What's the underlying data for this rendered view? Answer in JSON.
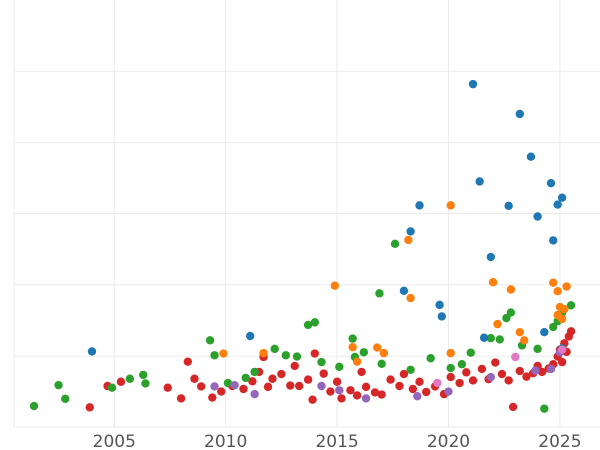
{
  "chart_data": {
    "type": "scatter",
    "title": "",
    "xlabel": "",
    "ylabel": "",
    "xlim": [
      2000.5,
      2026.8
    ],
    "ylim": [
      0,
      1
    ],
    "x_ticks": [
      2005,
      2010,
      2015,
      2020,
      2025
    ],
    "y_ticks": [
      0,
      0.166,
      0.333,
      0.5,
      0.666,
      0.833
    ],
    "y_tick_labels_visible": false,
    "grid": true,
    "legend": "none",
    "series": [
      {
        "color": "#d62728",
        "points": [
          [
            2003.9,
            0.046
          ],
          [
            2004.7,
            0.096
          ],
          [
            2005.3,
            0.106
          ],
          [
            2007.4,
            0.092
          ],
          [
            2008.0,
            0.067
          ],
          [
            2008.3,
            0.153
          ],
          [
            2008.6,
            0.113
          ],
          [
            2008.9,
            0.095
          ],
          [
            2009.4,
            0.069
          ],
          [
            2009.8,
            0.083
          ],
          [
            2010.3,
            0.096
          ],
          [
            2010.8,
            0.089
          ],
          [
            2011.2,
            0.107
          ],
          [
            2011.5,
            0.129
          ],
          [
            2011.7,
            0.164
          ],
          [
            2011.9,
            0.094
          ],
          [
            2012.1,
            0.113
          ],
          [
            2012.5,
            0.124
          ],
          [
            2012.9,
            0.097
          ],
          [
            2013.1,
            0.143
          ],
          [
            2013.3,
            0.096
          ],
          [
            2013.7,
            0.111
          ],
          [
            2013.9,
            0.064
          ],
          [
            2014.0,
            0.172
          ],
          [
            2014.4,
            0.125
          ],
          [
            2014.7,
            0.083
          ],
          [
            2015.0,
            0.106
          ],
          [
            2015.2,
            0.067
          ],
          [
            2015.6,
            0.086
          ],
          [
            2015.9,
            0.074
          ],
          [
            2016.1,
            0.129
          ],
          [
            2016.3,
            0.094
          ],
          [
            2016.7,
            0.081
          ],
          [
            2017.0,
            0.076
          ],
          [
            2017.4,
            0.111
          ],
          [
            2017.8,
            0.096
          ],
          [
            2018.0,
            0.124
          ],
          [
            2018.4,
            0.089
          ],
          [
            2018.7,
            0.106
          ],
          [
            2019.0,
            0.082
          ],
          [
            2019.4,
            0.095
          ],
          [
            2019.8,
            0.077
          ],
          [
            2020.1,
            0.117
          ],
          [
            2020.5,
            0.103
          ],
          [
            2020.8,
            0.128
          ],
          [
            2021.1,
            0.109
          ],
          [
            2021.5,
            0.136
          ],
          [
            2021.8,
            0.112
          ],
          [
            2022.1,
            0.151
          ],
          [
            2022.4,
            0.124
          ],
          [
            2022.7,
            0.109
          ],
          [
            2022.9,
            0.047
          ],
          [
            2023.2,
            0.131
          ],
          [
            2023.5,
            0.118
          ],
          [
            2023.8,
            0.126
          ],
          [
            2024.0,
            0.143
          ],
          [
            2024.2,
            0.129
          ],
          [
            2024.5,
            0.137
          ],
          [
            2024.7,
            0.147
          ],
          [
            2024.9,
            0.165
          ],
          [
            2025.0,
            0.181
          ],
          [
            2025.1,
            0.152
          ],
          [
            2025.2,
            0.196
          ],
          [
            2025.3,
            0.176
          ],
          [
            2025.4,
            0.212
          ],
          [
            2025.5,
            0.224
          ]
        ]
      },
      {
        "color": "#2ca02c",
        "points": [
          [
            2001.4,
            0.049
          ],
          [
            2002.5,
            0.098
          ],
          [
            2002.8,
            0.066
          ],
          [
            2004.9,
            0.092
          ],
          [
            2005.7,
            0.113
          ],
          [
            2006.3,
            0.122
          ],
          [
            2006.4,
            0.102
          ],
          [
            2009.3,
            0.203
          ],
          [
            2009.5,
            0.168
          ],
          [
            2010.1,
            0.103
          ],
          [
            2010.9,
            0.115
          ],
          [
            2011.3,
            0.129
          ],
          [
            2012.2,
            0.183
          ],
          [
            2012.7,
            0.168
          ],
          [
            2013.2,
            0.165
          ],
          [
            2013.7,
            0.239
          ],
          [
            2014.0,
            0.245
          ],
          [
            2014.3,
            0.152
          ],
          [
            2015.1,
            0.141
          ],
          [
            2015.7,
            0.207
          ],
          [
            2015.8,
            0.164
          ],
          [
            2016.2,
            0.175
          ],
          [
            2017.0,
            0.148
          ],
          [
            2016.9,
            0.313
          ],
          [
            2017.6,
            0.429
          ],
          [
            2018.3,
            0.134
          ],
          [
            2019.2,
            0.161
          ],
          [
            2020.1,
            0.138
          ],
          [
            2020.6,
            0.147
          ],
          [
            2021.0,
            0.174
          ],
          [
            2021.9,
            0.208
          ],
          [
            2022.3,
            0.205
          ],
          [
            2022.6,
            0.255
          ],
          [
            2022.8,
            0.268
          ],
          [
            2023.3,
            0.191
          ],
          [
            2024.0,
            0.183
          ],
          [
            2024.3,
            0.043
          ],
          [
            2024.7,
            0.234
          ],
          [
            2024.9,
            0.248
          ],
          [
            2025.1,
            0.267
          ],
          [
            2025.5,
            0.285
          ]
        ]
      },
      {
        "color": "#1f77b4",
        "points": [
          [
            2004.0,
            0.177
          ],
          [
            2011.1,
            0.213
          ],
          [
            2018.0,
            0.319
          ],
          [
            2019.7,
            0.259
          ],
          [
            2018.3,
            0.458
          ],
          [
            2018.7,
            0.519
          ],
          [
            2019.6,
            0.286
          ],
          [
            2021.1,
            0.803
          ],
          [
            2021.4,
            0.575
          ],
          [
            2021.6,
            0.209
          ],
          [
            2021.9,
            0.398
          ],
          [
            2022.7,
            0.518
          ],
          [
            2023.2,
            0.733
          ],
          [
            2023.7,
            0.633
          ],
          [
            2024.0,
            0.493
          ],
          [
            2024.3,
            0.222
          ],
          [
            2024.6,
            0.571
          ],
          [
            2024.7,
            0.437
          ],
          [
            2024.9,
            0.521
          ],
          [
            2025.1,
            0.537
          ],
          [
            2025.1,
            0.184
          ]
        ]
      },
      {
        "color": "#ff7f0e",
        "points": [
          [
            2009.9,
            0.172
          ],
          [
            2011.7,
            0.173
          ],
          [
            2014.9,
            0.331
          ],
          [
            2015.7,
            0.187
          ],
          [
            2015.9,
            0.153
          ],
          [
            2016.8,
            0.186
          ],
          [
            2017.1,
            0.173
          ],
          [
            2018.2,
            0.438
          ],
          [
            2018.3,
            0.302
          ],
          [
            2020.1,
            0.519
          ],
          [
            2020.1,
            0.173
          ],
          [
            2022.0,
            0.339
          ],
          [
            2022.2,
            0.241
          ],
          [
            2022.8,
            0.322
          ],
          [
            2023.2,
            0.222
          ],
          [
            2023.4,
            0.203
          ],
          [
            2024.7,
            0.338
          ],
          [
            2024.9,
            0.318
          ],
          [
            2025.0,
            0.281
          ],
          [
            2025.1,
            0.253
          ],
          [
            2025.2,
            0.276
          ],
          [
            2025.3,
            0.329
          ],
          [
            2024.9,
            0.262
          ]
        ]
      },
      {
        "color": "#9467bd",
        "points": [
          [
            2009.5,
            0.095
          ],
          [
            2010.4,
            0.098
          ],
          [
            2011.3,
            0.077
          ],
          [
            2014.3,
            0.096
          ],
          [
            2015.1,
            0.086
          ],
          [
            2016.3,
            0.067
          ],
          [
            2018.6,
            0.072
          ],
          [
            2020.0,
            0.083
          ],
          [
            2021.9,
            0.117
          ],
          [
            2023.9,
            0.132
          ],
          [
            2024.6,
            0.136
          ],
          [
            2025.0,
            0.175
          ]
        ]
      },
      {
        "color": "#e377c2",
        "points": [
          [
            2019.5,
            0.103
          ],
          [
            2023.0,
            0.164
          ],
          [
            2025.1,
            0.181
          ]
        ]
      }
    ]
  }
}
